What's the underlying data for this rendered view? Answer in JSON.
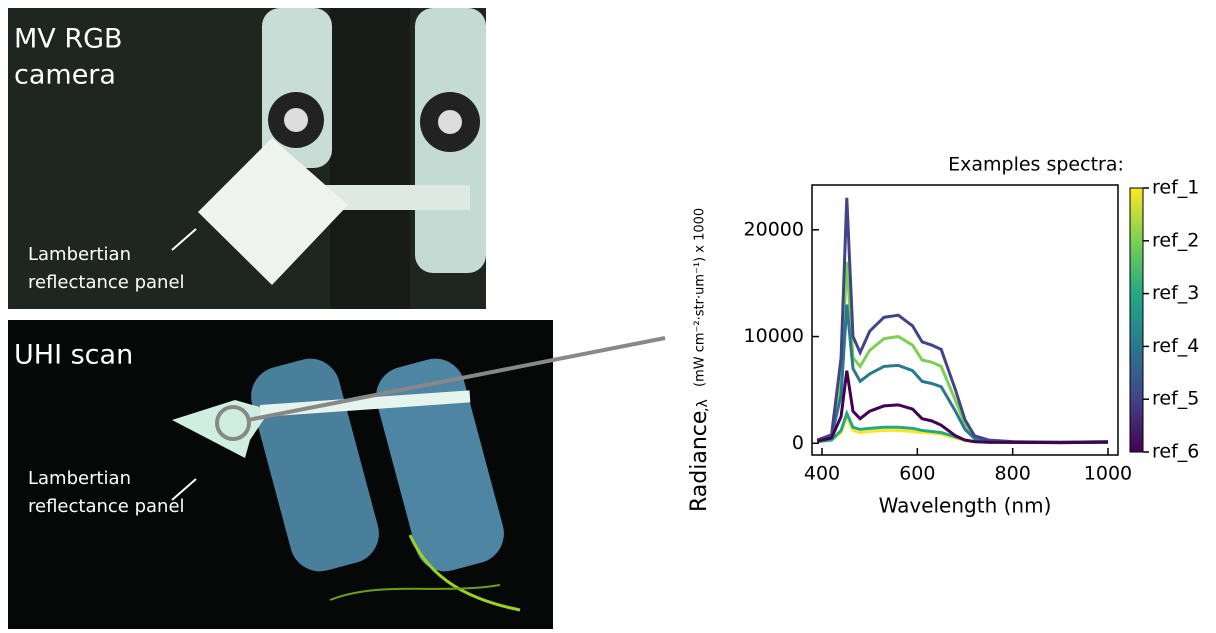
{
  "photos": [
    {
      "title_lines": [
        "MV RGB",
        "camera"
      ],
      "annotation_lines": [
        "Lambertian",
        "reflectance panel"
      ]
    },
    {
      "title_lines": [
        "UHI scan"
      ],
      "annotation_lines": [
        "Lambertian",
        "reflectance panel"
      ]
    }
  ],
  "chart_data": {
    "type": "line",
    "xlabel": "Wavelength (nm)",
    "ylabel": "Radiance",
    "ylabel_sub": ",λ",
    "ylabel_units": "(mW cm⁻²·str·um⁻¹) x 1000",
    "colorbar_title": "Examples spectra:",
    "x": [
      390,
      420,
      440,
      452,
      465,
      480,
      500,
      530,
      560,
      590,
      610,
      630,
      650,
      680,
      700,
      720,
      750,
      800,
      900,
      1000
    ],
    "series": [
      {
        "name": "ref_1",
        "color": "#fde725",
        "values": [
          150,
          300,
          1000,
          2500,
          1200,
          1000,
          1100,
          1200,
          1200,
          1100,
          1000,
          950,
          850,
          500,
          250,
          150,
          100,
          80,
          60,
          100
        ]
      },
      {
        "name": "ref_2",
        "color": "#7ad151",
        "values": [
          300,
          700,
          6000,
          17000,
          8000,
          7200,
          8700,
          9800,
          10000,
          9200,
          7800,
          7600,
          7200,
          4000,
          1800,
          600,
          250,
          120,
          100,
          150
        ]
      },
      {
        "name": "ref_3",
        "color": "#22a884",
        "values": [
          150,
          300,
          1200,
          2800,
          1500,
          1300,
          1400,
          1500,
          1500,
          1400,
          1200,
          1100,
          1000,
          600,
          300,
          150,
          100,
          80,
          60,
          100
        ]
      },
      {
        "name": "ref_4",
        "color": "#2a788e",
        "values": [
          250,
          600,
          4500,
          13000,
          7000,
          5800,
          6500,
          7200,
          7300,
          6800,
          5800,
          5600,
          5300,
          3000,
          1300,
          450,
          200,
          100,
          80,
          130
        ]
      },
      {
        "name": "ref_5",
        "color": "#414487",
        "values": [
          300,
          800,
          8000,
          23000,
          10000,
          8500,
          10500,
          11800,
          12000,
          11000,
          9500,
          9200,
          8800,
          5000,
          2200,
          700,
          300,
          150,
          100,
          150
        ]
      },
      {
        "name": "ref_6",
        "color": "#440154",
        "values": [
          200,
          500,
          2500,
          6800,
          3000,
          2300,
          3000,
          3500,
          3600,
          3200,
          2300,
          2100,
          1700,
          700,
          300,
          150,
          100,
          80,
          60,
          100
        ]
      }
    ],
    "xlim": [
      379,
      1021
    ],
    "ylim": [
      -1100,
      24200
    ],
    "xticks": [
      400,
      600,
      800,
      1000
    ],
    "yticks": [
      0,
      10000,
      20000
    ]
  }
}
